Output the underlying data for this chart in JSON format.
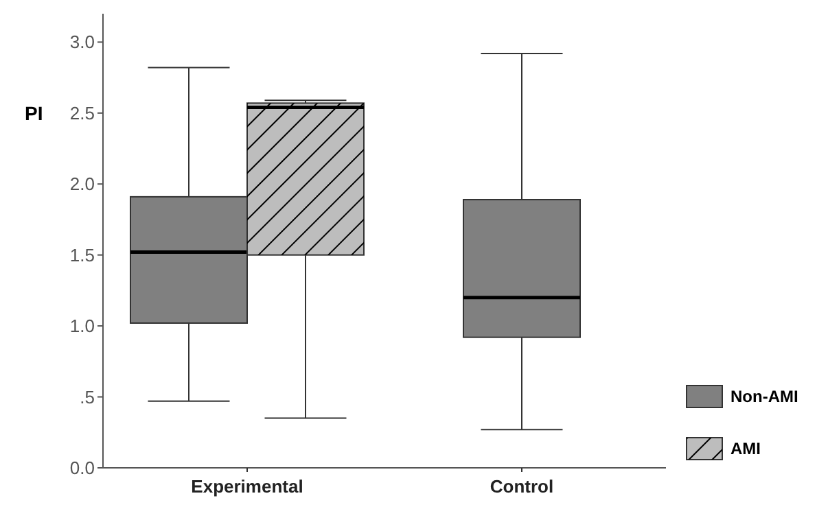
{
  "chart_data": {
    "type": "box",
    "ylabel": "PI",
    "categories": [
      "Experimental",
      "Control"
    ],
    "series": [
      {
        "name": "Non-AMI",
        "color": "#808080",
        "boxes": [
          {
            "low": 0.47,
            "q1": 1.02,
            "median": 1.52,
            "q3": 1.91,
            "high": 2.82
          },
          {
            "low": 0.27,
            "q1": 0.92,
            "median": 1.2,
            "q3": 1.89,
            "high": 2.92
          }
        ]
      },
      {
        "name": "AMI",
        "color": "#bdbdbd",
        "boxes": [
          {
            "low": 0.35,
            "q1": 1.5,
            "median": 2.54,
            "q3": 2.57,
            "high": 2.59
          },
          null
        ]
      }
    ],
    "ylim": [
      0,
      3.2
    ],
    "yticks": [
      {
        "value": 0,
        "label": "0.0"
      },
      {
        "value": 0.5,
        "label": ".5"
      },
      {
        "value": 1,
        "label": "1.0"
      },
      {
        "value": 1.5,
        "label": "1.5"
      },
      {
        "value": 2,
        "label": "2.0"
      },
      {
        "value": 2.5,
        "label": "2.5"
      },
      {
        "value": 3,
        "label": "3.0"
      }
    ],
    "legend": "bottom right"
  }
}
